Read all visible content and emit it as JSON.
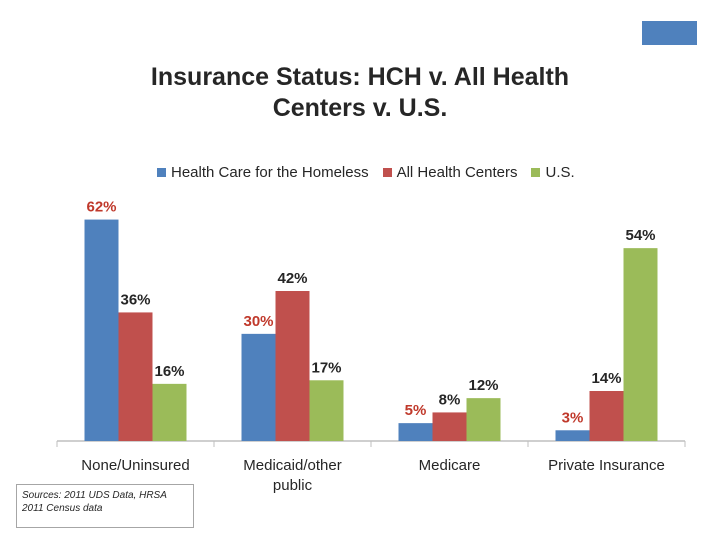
{
  "header": {
    "title_line1": "Insurance Status:  HCH v. All Health",
    "title_line2": "Centers v. U.S."
  },
  "colors": {
    "hch": "#4f81bd",
    "all_health_centers": "#c0504d",
    "us": "#9bbb59",
    "hch_label": "#c0392b",
    "label_default": "#262626",
    "axis": "#bfbfbf",
    "corner_box": "#4f81bd"
  },
  "chart_data": {
    "type": "bar",
    "title": "",
    "xlabel": "",
    "ylabel": "",
    "ylim": [
      0,
      70
    ],
    "grid": false,
    "legend_position": "top",
    "categories": [
      "None/Uninsured",
      "Medicaid/other public",
      "Medicare",
      "Private Insurance"
    ],
    "category_labels": [
      [
        "None/Uninsured"
      ],
      [
        "Medicaid/other",
        "public"
      ],
      [
        "Medicare"
      ],
      [
        "Private Insurance"
      ]
    ],
    "series": [
      {
        "name": "Health Care for the Homeless",
        "values": [
          62,
          30,
          5,
          3
        ],
        "labels": [
          "62%",
          "30%",
          "5%",
          "3%"
        ],
        "color": "#4f81bd",
        "label_color": "#c0392b"
      },
      {
        "name": "All Health Centers",
        "values": [
          36,
          42,
          8,
          14
        ],
        "labels": [
          "36%",
          "42%",
          "8%",
          "14%"
        ],
        "color": "#c0504d",
        "label_color": "#262626"
      },
      {
        "name": "U.S.",
        "values": [
          16,
          17,
          12,
          54
        ],
        "labels": [
          "16%",
          "17%",
          "12%",
          "54%"
        ],
        "color": "#9bbb59",
        "label_color": "#262626"
      }
    ]
  },
  "sources": {
    "line1": "Sources:  2011 UDS Data, HRSA",
    "line2": "2011 Census data"
  }
}
